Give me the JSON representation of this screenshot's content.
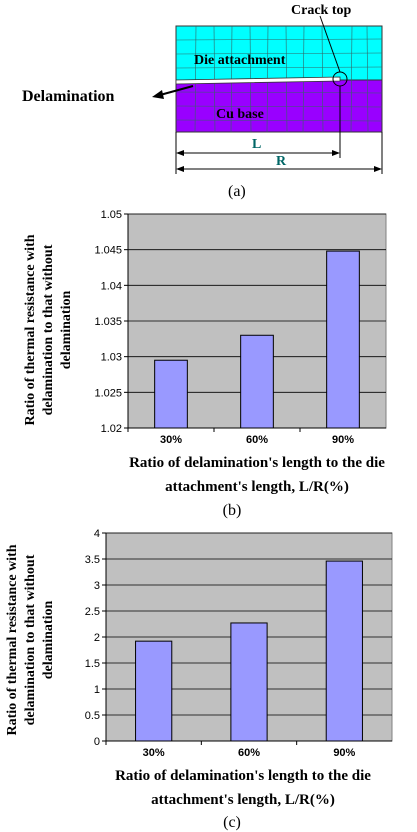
{
  "diagram": {
    "crack_label": "Crack top",
    "die_label": "Die attachment",
    "cu_label": "Cu base",
    "delam_label": "Delamination",
    "l_label": "L",
    "r_label": "R",
    "caption": "(a)",
    "colors": {
      "die": "#00ffff",
      "cu": "#9900ff",
      "dim": "#006666"
    }
  },
  "chart_data": [
    {
      "type": "bar",
      "categories": [
        "30%",
        "60%",
        "90%"
      ],
      "values": [
        1.0295,
        1.033,
        1.0448
      ],
      "ylim": [
        1.02,
        1.05
      ],
      "yticks": [
        "1.02",
        "1.025",
        "1.03",
        "1.035",
        "1.04",
        "1.045",
        "1.05"
      ],
      "ylabel_lines": [
        "Ratio of thermal resistance with",
        "delamination to that without",
        "delamination"
      ],
      "xlabel_lines": [
        "Ratio of delamination's length to the die",
        "attachment's length, L/R(%)"
      ],
      "caption": "(b)",
      "grid": true,
      "bar_color": "#9999ff",
      "plot_bg": "#c0c0c0"
    },
    {
      "type": "bar",
      "categories": [
        "30%",
        "60%",
        "90%"
      ],
      "values": [
        1.92,
        2.27,
        3.46
      ],
      "ylim": [
        0,
        4
      ],
      "yticks": [
        "0",
        "0.5",
        "1",
        "1.5",
        "2",
        "2.5",
        "3",
        "3.5",
        "4"
      ],
      "ylabel_lines": [
        "Ratio of thermal resistance with",
        "delamination to that without",
        "delamination"
      ],
      "xlabel_lines": [
        "Ratio of delamination's length to the die",
        "attachment's length, L/R(%)"
      ],
      "caption": "(c)",
      "grid": true,
      "bar_color": "#9999ff",
      "plot_bg": "#c0c0c0"
    }
  ]
}
